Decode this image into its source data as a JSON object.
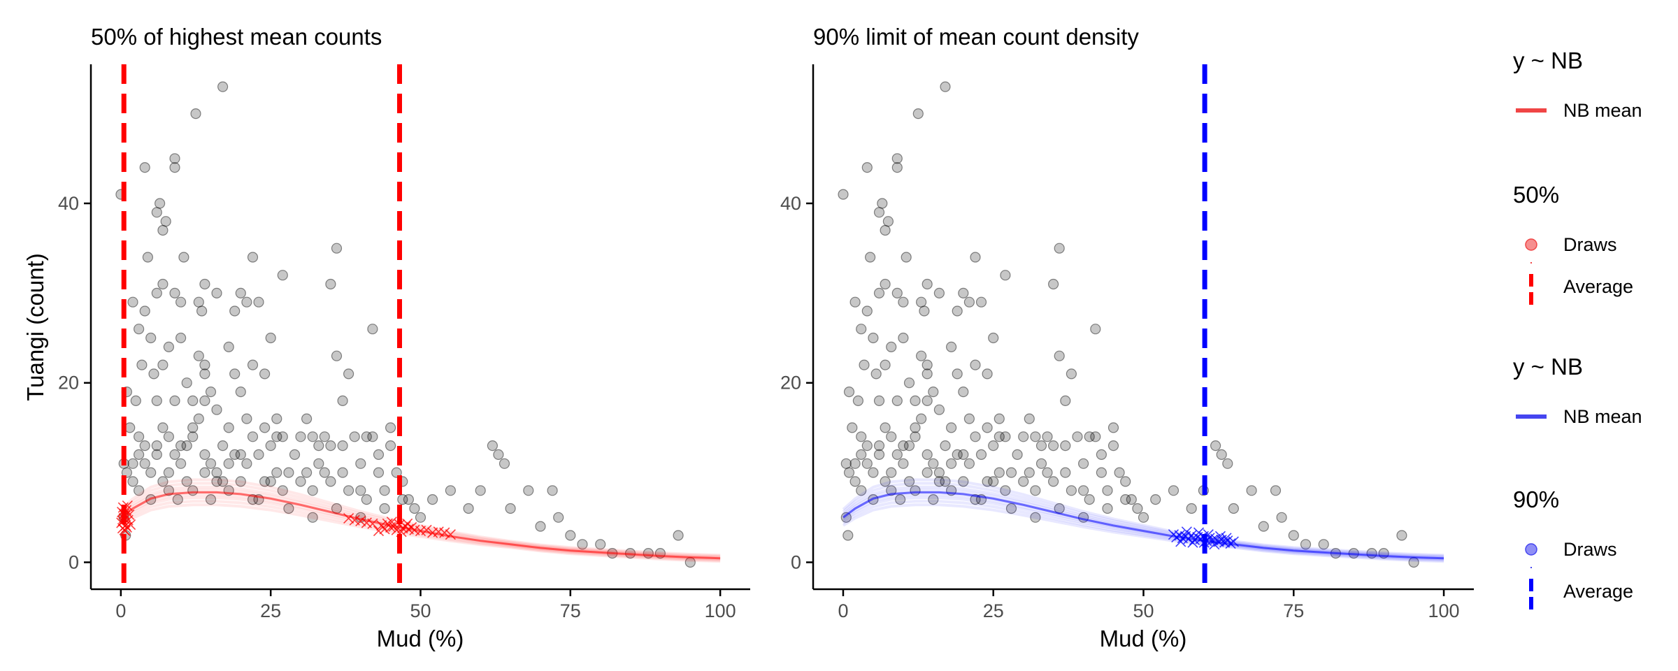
{
  "chart_data": [
    {
      "type": "scatter",
      "title": "50% of highest mean counts",
      "xlabel": "Mud (%)",
      "ylabel": "Tuangi (count)",
      "xlim": [
        -5,
        105
      ],
      "ylim": [
        -3,
        55.5
      ],
      "x_ticks": [
        0,
        25,
        50,
        75,
        100
      ],
      "y_ticks": [
        0,
        20,
        40
      ],
      "x_tick_labels": [
        "0",
        "25",
        "50",
        "75",
        "100"
      ],
      "y_tick_labels": [
        "0",
        "20",
        "40"
      ],
      "grid": false,
      "legend_position": "right",
      "accent_color": "#ff0000",
      "vlines": [
        0.5,
        46.5
      ],
      "mean_curve": [
        [
          0,
          5.0
        ],
        [
          2,
          6.0
        ],
        [
          5,
          7.1
        ],
        [
          8,
          7.6
        ],
        [
          12,
          7.8
        ],
        [
          16,
          7.8
        ],
        [
          20,
          7.6
        ],
        [
          25,
          7.1
        ],
        [
          30,
          6.4
        ],
        [
          35,
          5.6
        ],
        [
          40,
          4.8
        ],
        [
          45,
          4.1
        ],
        [
          50,
          3.5
        ],
        [
          55,
          2.9
        ],
        [
          60,
          2.4
        ],
        [
          65,
          2.0
        ],
        [
          70,
          1.6
        ],
        [
          75,
          1.3
        ],
        [
          80,
          1.1
        ],
        [
          85,
          0.9
        ],
        [
          90,
          0.7
        ],
        [
          95,
          0.55
        ],
        [
          100,
          0.45
        ]
      ],
      "draw_marks": [
        [
          0.1,
          4.4
        ],
        [
          0.2,
          5.6
        ],
        [
          0.3,
          3.8
        ],
        [
          0.4,
          6.1
        ],
        [
          0.5,
          4.9
        ],
        [
          0.6,
          3.6
        ],
        [
          0.7,
          5.2
        ],
        [
          0.8,
          4.1
        ],
        [
          0.9,
          5.8
        ],
        [
          1.0,
          3.9
        ],
        [
          1.2,
          4.7
        ],
        [
          1.4,
          5.3
        ],
        [
          1.6,
          4.2
        ],
        [
          0.35,
          4.6
        ],
        [
          0.55,
          5.4
        ],
        [
          0.75,
          3.5
        ],
        [
          1.1,
          6.3
        ],
        [
          43.5,
          4.1
        ],
        [
          44.0,
          3.7
        ],
        [
          44.5,
          4.3
        ],
        [
          45.0,
          3.9
        ],
        [
          45.5,
          4.0
        ],
        [
          46.0,
          3.6
        ],
        [
          46.5,
          4.2
        ],
        [
          47.0,
          3.8
        ],
        [
          47.5,
          4.0
        ],
        [
          48.0,
          3.7
        ],
        [
          48.5,
          3.9
        ],
        [
          49.0,
          3.6
        ],
        [
          42.0,
          4.3
        ],
        [
          41.0,
          4.4
        ],
        [
          40.0,
          4.6
        ],
        [
          39.0,
          4.7
        ],
        [
          50.0,
          3.5
        ],
        [
          51.0,
          3.6
        ],
        [
          52.0,
          3.3
        ],
        [
          53.0,
          3.4
        ],
        [
          54.0,
          3.3
        ],
        [
          55.0,
          3.1
        ],
        [
          38.0,
          4.9
        ],
        [
          45.2,
          4.5
        ],
        [
          46.8,
          3.4
        ],
        [
          47.8,
          4.3
        ],
        [
          43.0,
          3.5
        ]
      ]
    },
    {
      "type": "scatter",
      "title": "90% limit of mean count density",
      "xlabel": "Mud (%)",
      "ylabel": "",
      "xlim": [
        -5,
        105
      ],
      "ylim": [
        -3,
        55.5
      ],
      "x_ticks": [
        0,
        25,
        50,
        75,
        100
      ],
      "y_ticks": [
        0,
        20,
        40
      ],
      "x_tick_labels": [
        "0",
        "25",
        "50",
        "75",
        "100"
      ],
      "y_tick_labels": [
        "0",
        "20",
        "40"
      ],
      "grid": false,
      "legend_position": "right",
      "accent_color": "#0000ff",
      "vlines": [
        60.2
      ],
      "mean_curve": [
        [
          0,
          5.0
        ],
        [
          2,
          6.0
        ],
        [
          5,
          7.1
        ],
        [
          8,
          7.6
        ],
        [
          12,
          7.8
        ],
        [
          16,
          7.8
        ],
        [
          20,
          7.6
        ],
        [
          25,
          7.1
        ],
        [
          30,
          6.4
        ],
        [
          35,
          5.6
        ],
        [
          40,
          4.8
        ],
        [
          45,
          4.1
        ],
        [
          50,
          3.5
        ],
        [
          55,
          2.9
        ],
        [
          60,
          2.4
        ],
        [
          65,
          2.0
        ],
        [
          70,
          1.6
        ],
        [
          75,
          1.3
        ],
        [
          80,
          1.1
        ],
        [
          85,
          0.9
        ],
        [
          90,
          0.7
        ],
        [
          95,
          0.55
        ],
        [
          100,
          0.45
        ]
      ],
      "draw_marks": [
        [
          55.0,
          3.1
        ],
        [
          55.5,
          2.8
        ],
        [
          56.0,
          3.0
        ],
        [
          56.5,
          2.7
        ],
        [
          57.0,
          2.9
        ],
        [
          57.5,
          2.6
        ],
        [
          58.0,
          3.0
        ],
        [
          58.5,
          2.5
        ],
        [
          59.0,
          2.8
        ],
        [
          59.5,
          2.6
        ],
        [
          60.0,
          2.9
        ],
        [
          60.5,
          2.4
        ],
        [
          61.0,
          2.7
        ],
        [
          61.5,
          2.5
        ],
        [
          62.0,
          2.6
        ],
        [
          62.5,
          2.3
        ],
        [
          63.0,
          2.5
        ],
        [
          63.5,
          2.2
        ],
        [
          64.0,
          2.4
        ],
        [
          64.5,
          2.1
        ],
        [
          65.0,
          2.3
        ],
        [
          59.2,
          3.3
        ],
        [
          60.8,
          3.1
        ],
        [
          58.2,
          2.2
        ],
        [
          61.8,
          2.0
        ],
        [
          57.2,
          3.4
        ],
        [
          60.1,
          2.2
        ],
        [
          62.8,
          2.9
        ],
        [
          56.2,
          2.3
        ],
        [
          63.8,
          2.7
        ]
      ]
    }
  ],
  "observed_points": [
    [
      0,
      41
    ],
    [
      0.5,
      5
    ],
    [
      0.8,
      3
    ],
    [
      1,
      19
    ],
    [
      1.5,
      15
    ],
    [
      2,
      29
    ],
    [
      2,
      11
    ],
    [
      2.5,
      18
    ],
    [
      3,
      26
    ],
    [
      3,
      14
    ],
    [
      3,
      8
    ],
    [
      3.5,
      22
    ],
    [
      4,
      44
    ],
    [
      4,
      28
    ],
    [
      4,
      13
    ],
    [
      4.5,
      34
    ],
    [
      5,
      25
    ],
    [
      5,
      7
    ],
    [
      5.5,
      21
    ],
    [
      6,
      39
    ],
    [
      6,
      30
    ],
    [
      6,
      18
    ],
    [
      6,
      12
    ],
    [
      6.5,
      40
    ],
    [
      7,
      37
    ],
    [
      7,
      31
    ],
    [
      7,
      22
    ],
    [
      7,
      15
    ],
    [
      7.5,
      38
    ],
    [
      8,
      24
    ],
    [
      8,
      14
    ],
    [
      8,
      10
    ],
    [
      9,
      45
    ],
    [
      9,
      44
    ],
    [
      9,
      30
    ],
    [
      9,
      18
    ],
    [
      9,
      12
    ],
    [
      9.5,
      7
    ],
    [
      10,
      29
    ],
    [
      10,
      25
    ],
    [
      10,
      11
    ],
    [
      10.5,
      34
    ],
    [
      11,
      20
    ],
    [
      11,
      13
    ],
    [
      11,
      9
    ],
    [
      12,
      18
    ],
    [
      12,
      14
    ],
    [
      12,
      8
    ],
    [
      12.5,
      50
    ],
    [
      13,
      29
    ],
    [
      13,
      23
    ],
    [
      13,
      16
    ],
    [
      13.5,
      28
    ],
    [
      14,
      31
    ],
    [
      14,
      22
    ],
    [
      14,
      21
    ],
    [
      14,
      18
    ],
    [
      14,
      12
    ],
    [
      15,
      19
    ],
    [
      15,
      11
    ],
    [
      15,
      7
    ],
    [
      16,
      30
    ],
    [
      16,
      17
    ],
    [
      16,
      10
    ],
    [
      17,
      53
    ],
    [
      17,
      13
    ],
    [
      17,
      9
    ],
    [
      18,
      24
    ],
    [
      18,
      15
    ],
    [
      18,
      8
    ],
    [
      19,
      28
    ],
    [
      19,
      21
    ],
    [
      19,
      12
    ],
    [
      20,
      30
    ],
    [
      20,
      19
    ],
    [
      20,
      9
    ],
    [
      21,
      29
    ],
    [
      21,
      16
    ],
    [
      21,
      11
    ],
    [
      22,
      34
    ],
    [
      22,
      22
    ],
    [
      22,
      14
    ],
    [
      23,
      29
    ],
    [
      23,
      12
    ],
    [
      23,
      7
    ],
    [
      24,
      21
    ],
    [
      24,
      15
    ],
    [
      24,
      9
    ],
    [
      25,
      25
    ],
    [
      25,
      13
    ],
    [
      26,
      16
    ],
    [
      26,
      10
    ],
    [
      26,
      14
    ],
    [
      27,
      32
    ],
    [
      27,
      14
    ],
    [
      27,
      8
    ],
    [
      28,
      10
    ],
    [
      29,
      12
    ],
    [
      30,
      14
    ],
    [
      30,
      9
    ],
    [
      31,
      16
    ],
    [
      31,
      10
    ],
    [
      32,
      14
    ],
    [
      32,
      8
    ],
    [
      33,
      13
    ],
    [
      33,
      11
    ],
    [
      34,
      10
    ],
    [
      34,
      14
    ],
    [
      35,
      31
    ],
    [
      35,
      9
    ],
    [
      35,
      13
    ],
    [
      36,
      23
    ],
    [
      36,
      35
    ],
    [
      37,
      18
    ],
    [
      37,
      10
    ],
    [
      37,
      13
    ],
    [
      38,
      21
    ],
    [
      38,
      8
    ],
    [
      39,
      14
    ],
    [
      40,
      11
    ],
    [
      40,
      8
    ],
    [
      41,
      14
    ],
    [
      41,
      7
    ],
    [
      42,
      26
    ],
    [
      42,
      14
    ],
    [
      43,
      12
    ],
    [
      43,
      10
    ],
    [
      44,
      8
    ],
    [
      45,
      15
    ],
    [
      45,
      13
    ],
    [
      46,
      10
    ],
    [
      47,
      7
    ],
    [
      47,
      9
    ],
    [
      48,
      7
    ],
    [
      49,
      6
    ],
    [
      50,
      5
    ],
    [
      52,
      7
    ],
    [
      55,
      8
    ],
    [
      58,
      6
    ],
    [
      60,
      8
    ],
    [
      62,
      13
    ],
    [
      63,
      12
    ],
    [
      64,
      11
    ],
    [
      65,
      6
    ],
    [
      68,
      8
    ],
    [
      70,
      4
    ],
    [
      72,
      8
    ],
    [
      73,
      5
    ],
    [
      75,
      3
    ],
    [
      77,
      2
    ],
    [
      80,
      2
    ],
    [
      82,
      1
    ],
    [
      85,
      1
    ],
    [
      88,
      1
    ],
    [
      90,
      1
    ],
    [
      93,
      3
    ],
    [
      95,
      0
    ],
    [
      0.5,
      11
    ],
    [
      1,
      10
    ],
    [
      2,
      9
    ],
    [
      3,
      12
    ],
    [
      4,
      11
    ],
    [
      5,
      10
    ],
    [
      6,
      13
    ],
    [
      7,
      9
    ],
    [
      8,
      8
    ],
    [
      10,
      13
    ],
    [
      12,
      15
    ],
    [
      14,
      10
    ],
    [
      16,
      9
    ],
    [
      18,
      11
    ],
    [
      20,
      12
    ],
    [
      22,
      7
    ],
    [
      25,
      9
    ],
    [
      28,
      6
    ],
    [
      32,
      5
    ],
    [
      36,
      6
    ],
    [
      40,
      5
    ],
    [
      44,
      6
    ]
  ],
  "legend": {
    "groups": [
      {
        "title": "y ~ NB",
        "items": [
          {
            "label": "NB mean",
            "symbol": "line",
            "color": "#f04545"
          }
        ]
      },
      {
        "title": "50%",
        "items": [
          {
            "label": "Draws",
            "symbol": "point",
            "color": "#f04545"
          },
          {
            "label": "Average",
            "symbol": "dash",
            "color": "#ff0000"
          }
        ]
      },
      {
        "title": "y ~ NB",
        "items": [
          {
            "label": "NB mean",
            "symbol": "line",
            "color": "#4545f0"
          }
        ]
      },
      {
        "title": "90%",
        "items": [
          {
            "label": "Draws",
            "symbol": "point",
            "color": "#4545f0"
          },
          {
            "label": "Average",
            "symbol": "dash",
            "color": "#0000ff"
          }
        ]
      }
    ]
  }
}
